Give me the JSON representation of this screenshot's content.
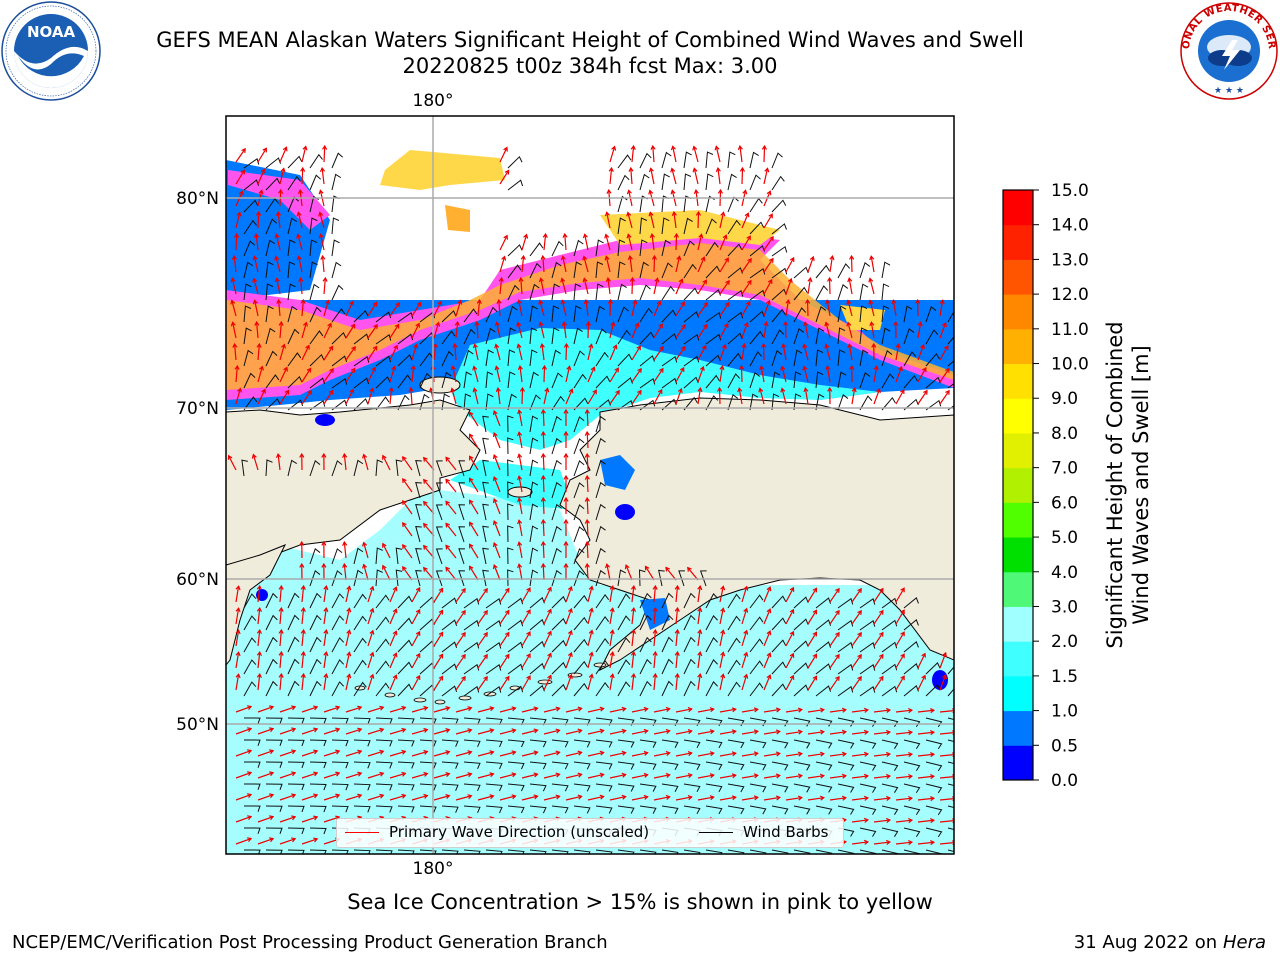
{
  "title": {
    "line1": "GEFS MEAN Alaskan Waters Significant Height of Combined Wind Waves and Swell",
    "line2": "20220825 t00z 384h fcst   Max: 3.00"
  },
  "logos": {
    "left": {
      "icon": "noaa-logo-icon",
      "text": "NOAA"
    },
    "right": {
      "icon": "nws-logo-icon",
      "text": "NATIONAL WEATHER SERVICE"
    }
  },
  "map": {
    "lon_labels": {
      "top": "180°",
      "bottom": "180°"
    },
    "lat_labels": [
      "80°N",
      "70°N",
      "60°N",
      "50°N"
    ],
    "land_color": "#efecdc",
    "water_color": "#a5fdfd",
    "ice_colors": [
      "#ff55ee",
      "#ffb030",
      "#ffd84a"
    ]
  },
  "legend": {
    "wave_label": "Primary Wave Direction (unscaled)",
    "wave_color": "#ff0000",
    "barb_label": "Wind Barbs",
    "barb_color": "#000000"
  },
  "colorbar": {
    "label_line1": "Significant Height of Combined",
    "label_line2": "Wind Waves and Swell [m]",
    "ticks": [
      "0.0",
      "0.5",
      "1.0",
      "1.5",
      "2.0",
      "3.0",
      "4.0",
      "5.0",
      "6.0",
      "7.0",
      "8.0",
      "9.0",
      "10.0",
      "11.0",
      "12.0",
      "13.0",
      "14.0",
      "15.0"
    ],
    "colors": [
      "#0000ff",
      "#0078ff",
      "#00ffff",
      "#40ffff",
      "#a0ffff",
      "#50f878",
      "#00e000",
      "#50ff00",
      "#b0f000",
      "#e0f000",
      "#ffff00",
      "#ffe000",
      "#ffb000",
      "#ff8800",
      "#ff5500",
      "#ff2200",
      "#ff0000"
    ]
  },
  "caption": "Sea Ice Concentration > 15% is shown in pink to yellow",
  "credit_left": "NCEP/EMC/Verification Post Processing Product Generation Branch",
  "credit_right_date": "31 Aug 2022 on",
  "credit_right_host": "Hera"
}
